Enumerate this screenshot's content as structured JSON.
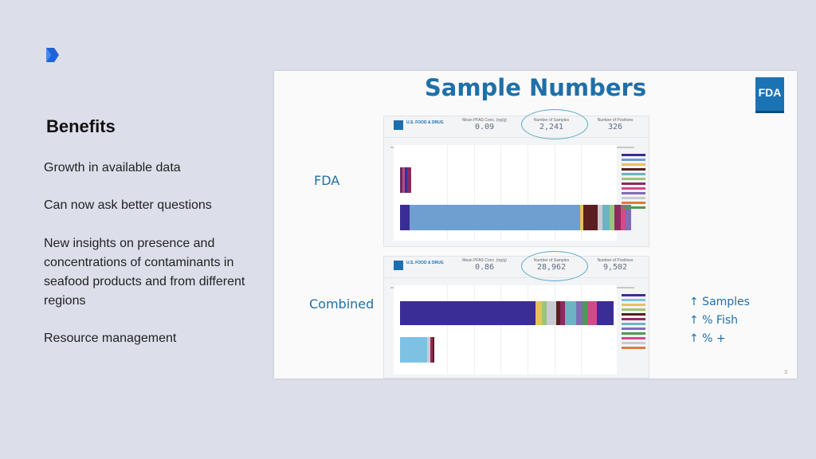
{
  "sidebar": {
    "heading": "Benefits",
    "items": [
      "Growth in available data",
      "Can now ask better questions",
      "New insights on presence and concentrations of contaminants in seafood products and from different regions",
      "Resource management"
    ]
  },
  "slide": {
    "title": "Sample Numbers",
    "badge": "FDA",
    "page_number": "3",
    "rows": [
      {
        "label": "FDA",
        "logo_text": "U.S. FOOD & DRUG",
        "stats": [
          {
            "label": "Mean PFAS Conc. (ng/g)",
            "value": "0.09"
          },
          {
            "label": "Number of Samples",
            "value": "2,241"
          },
          {
            "label": "Number of Positives",
            "value": "326"
          }
        ]
      },
      {
        "label": "Combined",
        "logo_text": "U.S. FOOD & DRUG",
        "stats": [
          {
            "label": "Mean PFAS Conc. (ng/g)",
            "value": "0.86"
          },
          {
            "label": "Number of Samples",
            "value": "28,962"
          },
          {
            "label": "Number of Positives",
            "value": "9,502"
          }
        ]
      }
    ],
    "changes": [
      "↑ Samples",
      "↑ % Fish",
      "↑ % +"
    ]
  },
  "colors": {
    "title_blue": "#1f6fa8",
    "fda_blue": "#1c73b3",
    "bar_light_blue": "#6f9fd0",
    "bar_navy": "#3a2d96"
  }
}
